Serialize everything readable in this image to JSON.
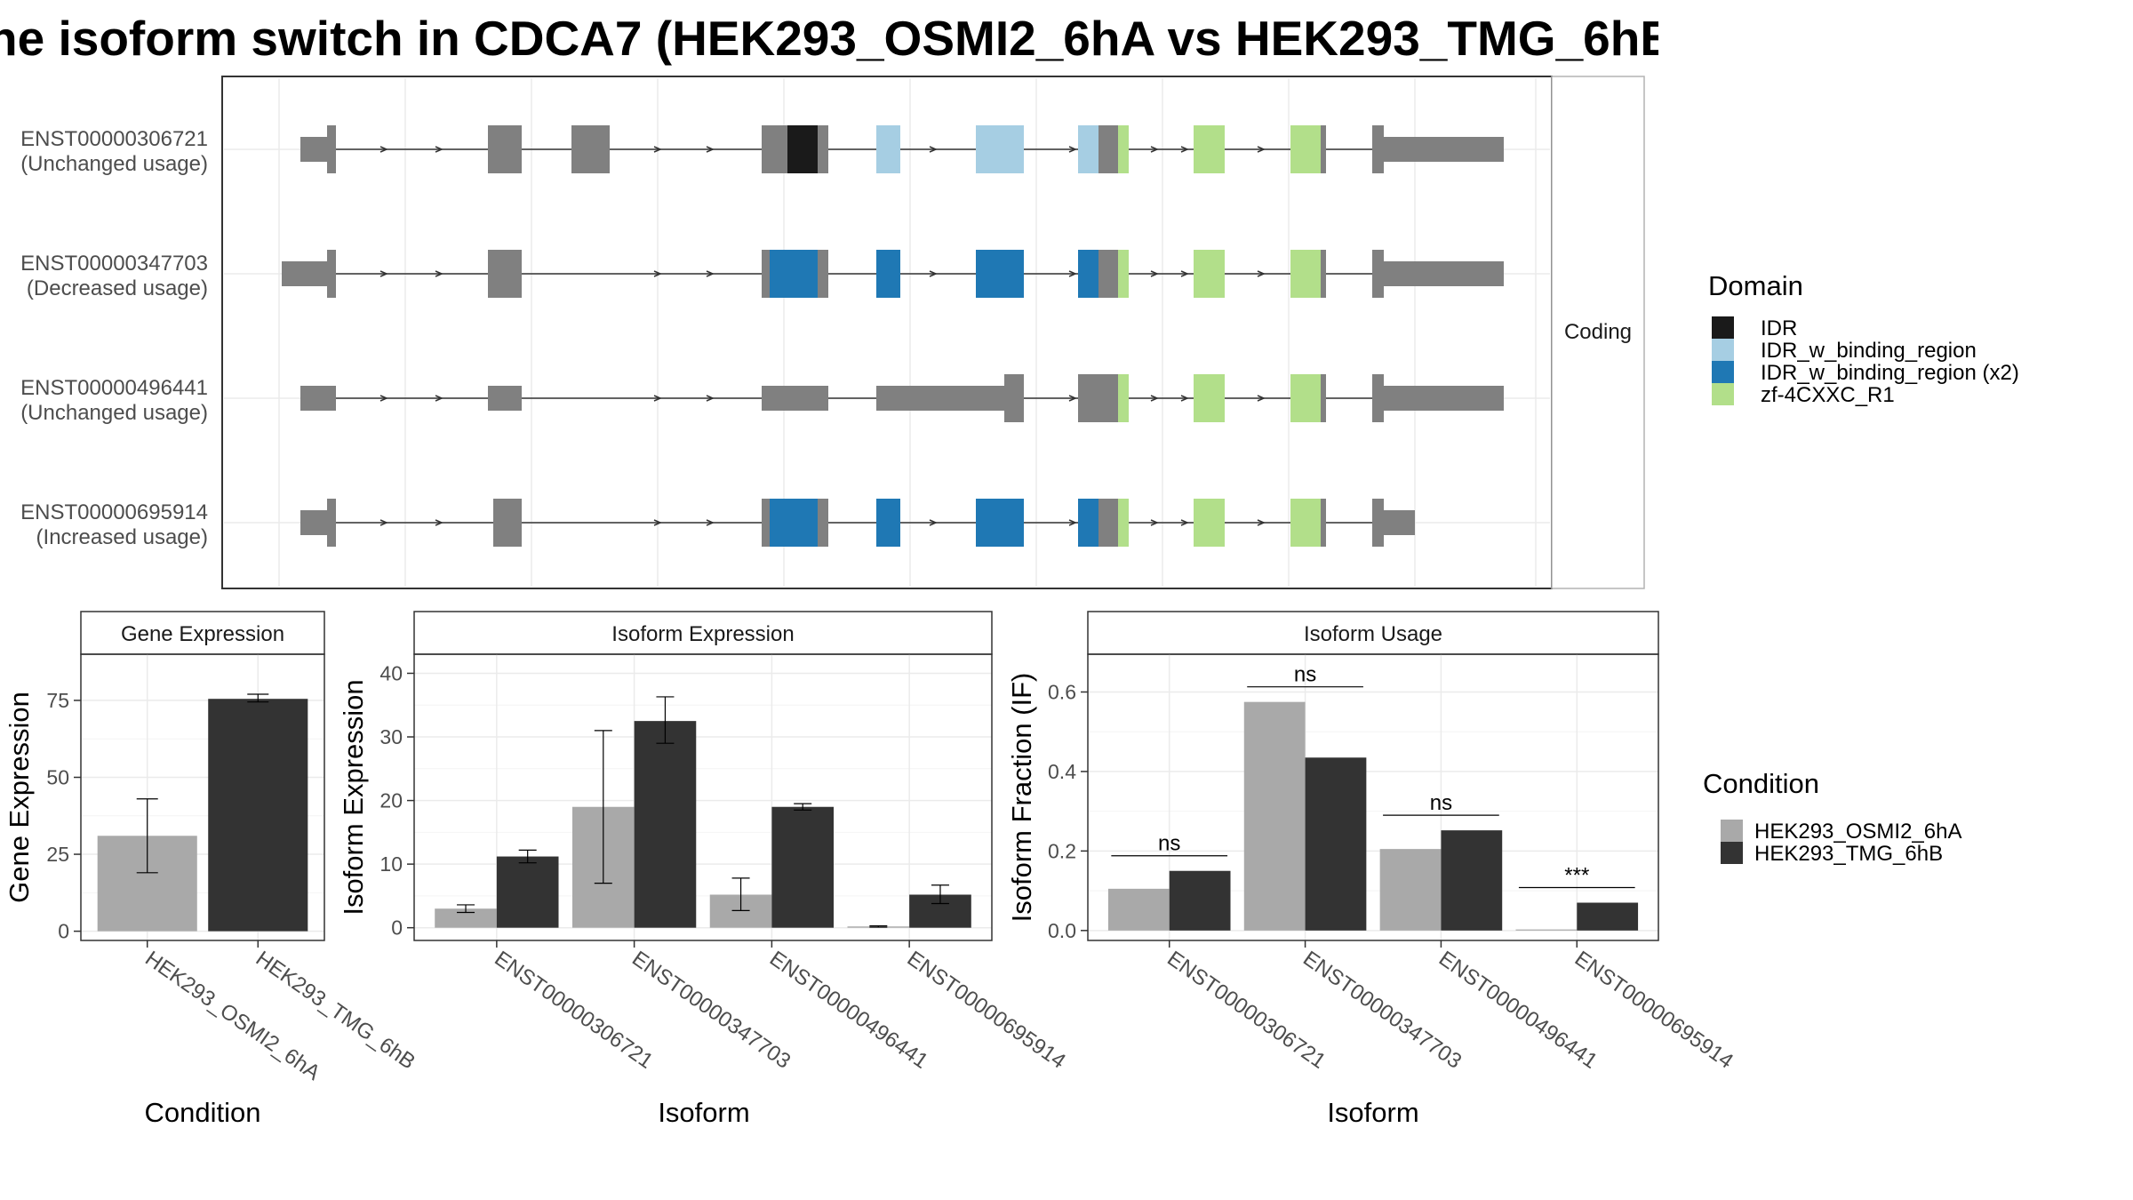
{
  "title": "he isoform switch in CDCA7 (HEK293_OSMI2_6hA vs HEK293_TMG_6hB",
  "colors": {
    "IDR": "#1a1a1a",
    "IDR_w_binding_region": "#a6cee3",
    "IDR_w_binding_region (x2)": "#1f78b4",
    "zf-4CXXC_R1": "#b2df8a",
    "exon": "#808080",
    "cond1": "#a9a9a9",
    "cond2": "#333333"
  },
  "transcript_panel": {
    "facet_label": "Coding",
    "transcripts": [
      {
        "id": "ENST00000306721",
        "usage": "(Unchanged usage)"
      },
      {
        "id": "ENST00000347703",
        "usage": "(Decreased usage)"
      },
      {
        "id": "ENST00000496441",
        "usage": "(Unchanged usage)"
      },
      {
        "id": "ENST00000695914",
        "usage": "(Increased usage)"
      }
    ]
  },
  "domain_legend": {
    "title": "Domain",
    "items": [
      "IDR",
      "IDR_w_binding_region",
      "IDR_w_binding_region (x2)",
      "zf-4CXXC_R1"
    ]
  },
  "condition_legend": {
    "title": "Condition",
    "items": [
      "HEK293_OSMI2_6hA",
      "HEK293_TMG_6hB"
    ]
  },
  "chart_data": [
    {
      "type": "bar",
      "title": "Gene Expression",
      "xlabel": "Condition",
      "ylabel": "Gene Expression",
      "categories": [
        "HEK293_OSMI2_6hA",
        "HEK293_TMG_6hB"
      ],
      "values": [
        31,
        75.5
      ],
      "error_low": [
        19,
        74.5
      ],
      "error_high": [
        43,
        77
      ],
      "yticks": [
        0,
        25,
        50,
        75
      ],
      "ylim": [
        -3,
        90
      ]
    },
    {
      "type": "bar",
      "title": "Isoform Expression",
      "xlabel": "Isoform",
      "ylabel": "Isoform Expression",
      "categories": [
        "ENST00000306721",
        "ENST00000347703",
        "ENST00000496441",
        "ENST00000695914"
      ],
      "series": [
        {
          "name": "HEK293_OSMI2_6hA",
          "values": [
            3,
            19,
            5.2,
            0.2
          ],
          "error_low": [
            2.4,
            7,
            2.7,
            0.1
          ],
          "error_high": [
            3.6,
            31,
            7.8,
            0.3
          ]
        },
        {
          "name": "HEK293_TMG_6hB",
          "values": [
            11.2,
            32.5,
            19,
            5.2
          ],
          "error_low": [
            10.2,
            29,
            18.5,
            3.8
          ],
          "error_high": [
            12.2,
            36.3,
            19.5,
            6.7
          ]
        }
      ],
      "yticks": [
        0,
        10,
        20,
        30,
        40
      ],
      "ylim": [
        -2,
        43
      ]
    },
    {
      "type": "bar",
      "title": "Isoform Usage",
      "xlabel": "Isoform",
      "ylabel": "Isoform Fraction (IF)",
      "categories": [
        "ENST00000306721",
        "ENST00000347703",
        "ENST00000496441",
        "ENST00000695914"
      ],
      "series": [
        {
          "name": "HEK293_OSMI2_6hA",
          "values": [
            0.105,
            0.575,
            0.205,
            0.002
          ]
        },
        {
          "name": "HEK293_TMG_6hB",
          "values": [
            0.15,
            0.435,
            0.252,
            0.07
          ]
        }
      ],
      "significance": [
        "ns",
        "ns",
        "ns",
        "***"
      ],
      "yticks": [
        0.0,
        0.2,
        0.4,
        0.6
      ],
      "ylim": [
        -0.025,
        0.695
      ]
    }
  ]
}
